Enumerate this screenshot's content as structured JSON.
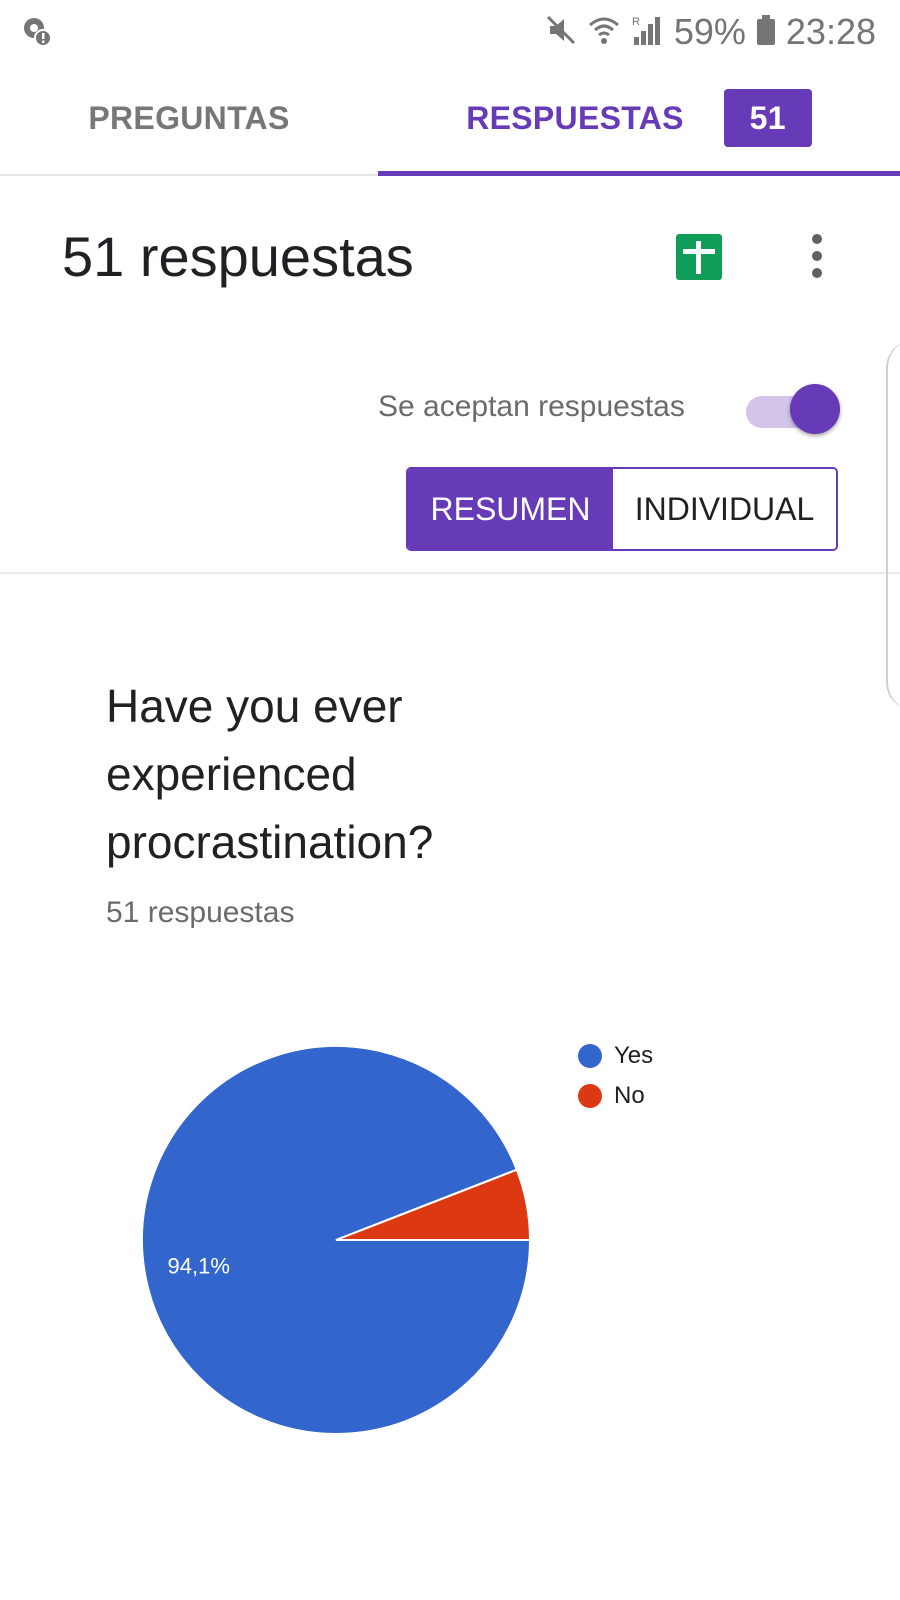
{
  "status_bar": {
    "battery_percent": "59%",
    "time": "23:28",
    "icons": [
      "alert-location-icon",
      "mute-icon",
      "wifi-icon",
      "signal-icon",
      "battery-icon"
    ]
  },
  "tabs": {
    "preguntas": "PREGUNTAS",
    "respuestas": "RESPUESTAS",
    "respuestas_count": "51"
  },
  "header": {
    "title": "51 respuestas",
    "sheets_icon": "sheets-plus-icon",
    "more_icon": "more-vert-icon"
  },
  "accepting": {
    "label": "Se aceptan respuestas",
    "enabled": true
  },
  "view_toggle": {
    "summary": "RESUMEN",
    "individual": "INDIVIDUAL",
    "selected": "summary"
  },
  "question": {
    "title": "Have you ever experienced procrastination?",
    "count": "51 respuestas"
  },
  "colors": {
    "accent": "#673ab7",
    "yes": "#3366cc",
    "no": "#dc3912",
    "sheets_green": "#0f9d58"
  },
  "chart_data": {
    "type": "pie",
    "categories": [
      "Yes",
      "No"
    ],
    "values": [
      94.1,
      5.9
    ],
    "data_labels": [
      "94,1%",
      ""
    ],
    "legend": [
      "Yes",
      "No"
    ],
    "legend_position": "top-right"
  }
}
